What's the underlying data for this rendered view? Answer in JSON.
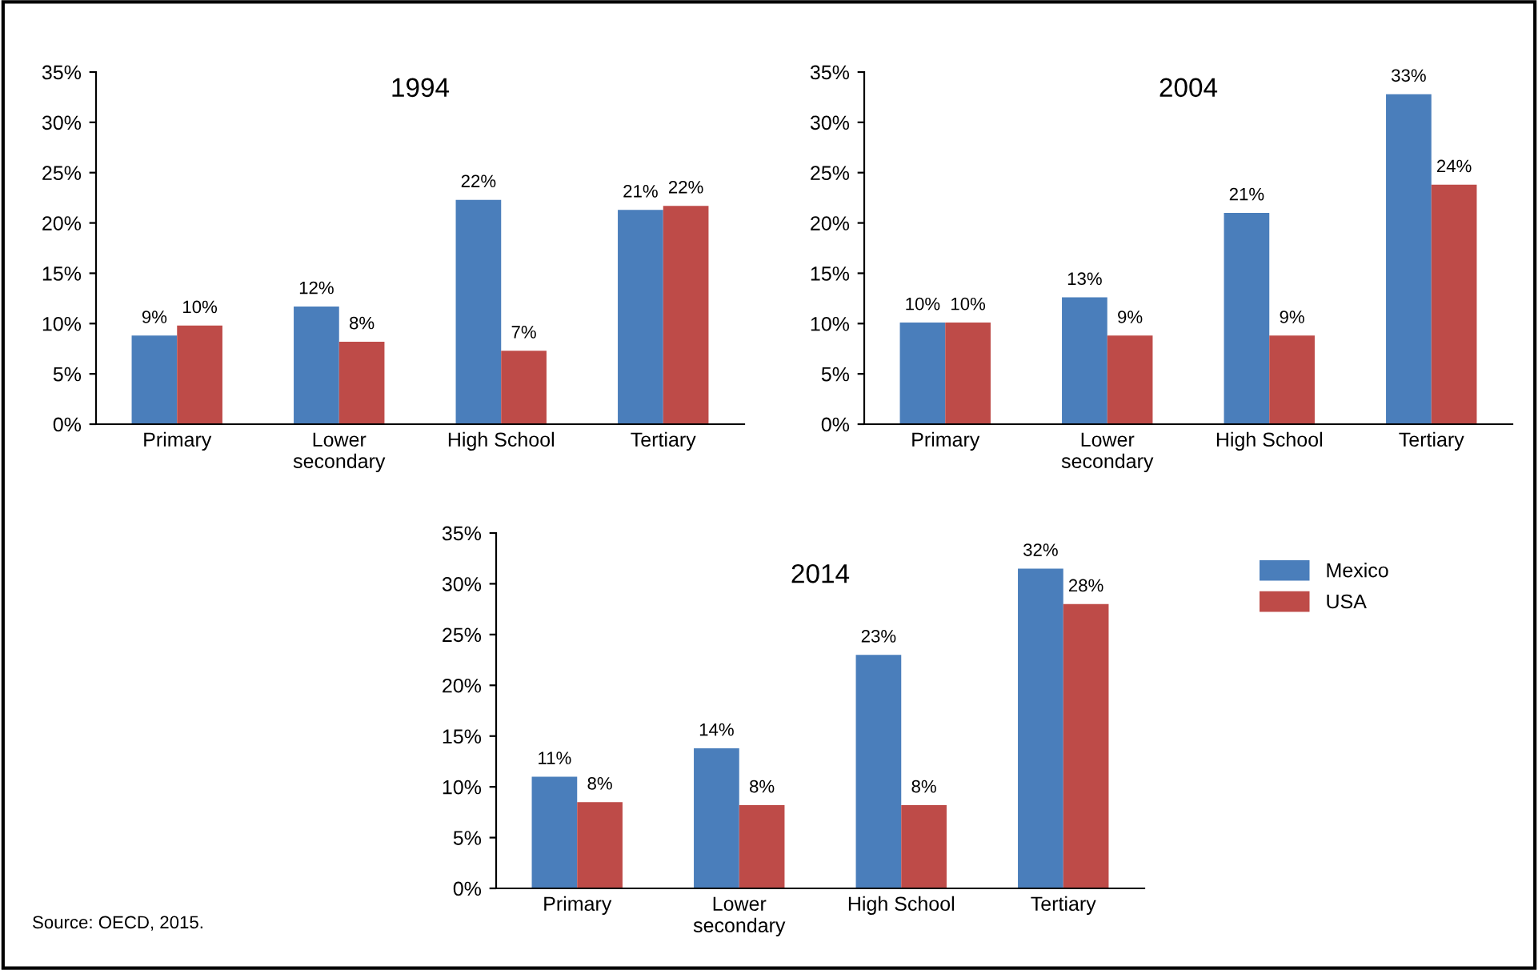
{
  "chart_data": [
    {
      "type": "bar",
      "title": "1994",
      "categories": [
        "Primary",
        "Lower\nsecondary",
        "High School",
        "Tertiary"
      ],
      "series": [
        {
          "color": "#4a7ebb",
          "values": [
            8.8,
            11.7,
            22.3,
            21.3
          ],
          "value_labels": [
            "9%",
            "12%",
            "22%",
            "21%"
          ]
        },
        {
          "color": "#be4b48",
          "values": [
            9.8,
            8.2,
            7.3,
            21.7
          ],
          "value_labels": [
            "10%",
            "8%",
            "7%",
            "22%"
          ]
        }
      ],
      "ylim": [
        0,
        35
      ],
      "yticks": [
        {
          "value": 0,
          "label": "0%"
        },
        {
          "value": 5,
          "label": "5%"
        },
        {
          "value": 10,
          "label": "10%"
        },
        {
          "value": 15,
          "label": "15%"
        },
        {
          "value": 20,
          "label": "20%"
        },
        {
          "value": 25,
          "label": "25%"
        },
        {
          "value": 30,
          "label": "30%"
        },
        {
          "value": 35,
          "label": "35%"
        }
      ]
    },
    {
      "type": "bar",
      "title": "2004",
      "categories": [
        "Primary",
        "Lower\nsecondary",
        "High School",
        "Tertiary"
      ],
      "series": [
        {
          "color": "#4a7ebb",
          "values": [
            10.1,
            12.6,
            21,
            32.8
          ],
          "value_labels": [
            "10%",
            "13%",
            "21%",
            "33%"
          ]
        },
        {
          "color": "#be4b48",
          "values": [
            10.1,
            8.8,
            8.8,
            23.8
          ],
          "value_labels": [
            "10%",
            "9%",
            "9%",
            "24%"
          ]
        }
      ],
      "ylim": [
        0,
        35
      ],
      "yticks": [
        {
          "value": 0,
          "label": "0%"
        },
        {
          "value": 5,
          "label": "5%"
        },
        {
          "value": 10,
          "label": "10%"
        },
        {
          "value": 15,
          "label": "15%"
        },
        {
          "value": 20,
          "label": "20%"
        },
        {
          "value": 25,
          "label": "25%"
        },
        {
          "value": 30,
          "label": "30%"
        },
        {
          "value": 35,
          "label": "35%"
        }
      ]
    },
    {
      "type": "bar",
      "title": "2014",
      "categories": [
        "Primary",
        "Lower\nsecondary",
        "High School",
        "Tertiary"
      ],
      "series": [
        {
          "name": "Mexico",
          "color": "#4a7ebb",
          "values": [
            11,
            13.8,
            23,
            31.5
          ],
          "value_labels": [
            "11%",
            "14%",
            "23%",
            "32%"
          ]
        },
        {
          "name": "USA",
          "color": "#be4b48",
          "values": [
            8.5,
            8.2,
            8.2,
            28
          ],
          "value_labels": [
            "8%",
            "8%",
            "8%",
            "28%"
          ]
        }
      ],
      "ylim": [
        0,
        35
      ],
      "yticks": [
        {
          "value": 0,
          "label": "0%"
        },
        {
          "value": 5,
          "label": "5%"
        },
        {
          "value": 10,
          "label": "10%"
        },
        {
          "value": 15,
          "label": "15%"
        },
        {
          "value": 20,
          "label": "20%"
        },
        {
          "value": 25,
          "label": "25%"
        },
        {
          "value": 30,
          "label": "30%"
        },
        {
          "value": 35,
          "label": "35%"
        }
      ],
      "legend": "right",
      "annotations": [
        "Source: OECD, 2015."
      ]
    }
  ]
}
